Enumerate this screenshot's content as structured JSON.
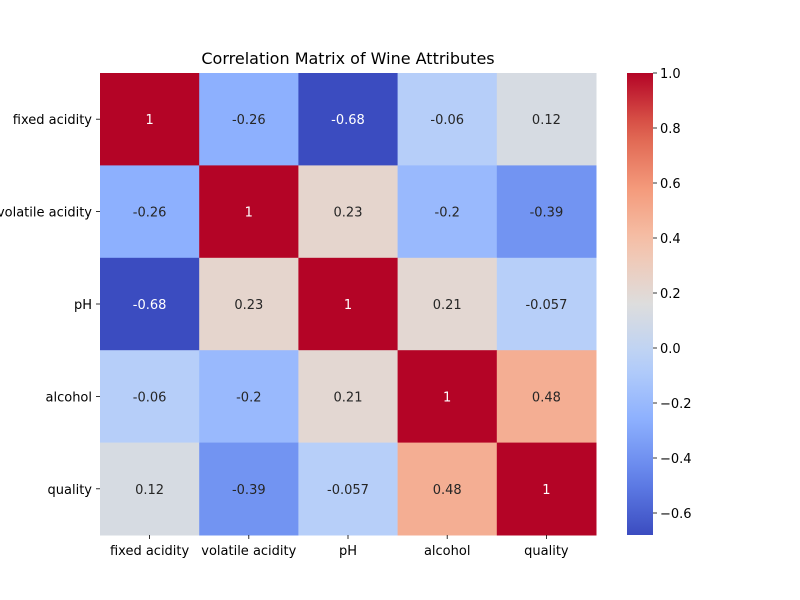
{
  "chart_data": {
    "type": "heatmap",
    "title": "Correlation Matrix of Wine Attributes",
    "row_labels": [
      "fixed acidity",
      "volatile acidity",
      "pH",
      "alcohol",
      "quality"
    ],
    "col_labels": [
      "fixed acidity",
      "volatile acidity",
      "pH",
      "alcohol",
      "quality"
    ],
    "values": [
      [
        1,
        -0.26,
        -0.68,
        -0.06,
        0.12
      ],
      [
        -0.26,
        1,
        0.23,
        -0.2,
        -0.39
      ],
      [
        -0.68,
        0.23,
        1,
        0.21,
        -0.057
      ],
      [
        -0.06,
        -0.2,
        0.21,
        1,
        0.48
      ],
      [
        0.12,
        -0.39,
        -0.057,
        0.48,
        1
      ]
    ],
    "annotations": [
      [
        "1",
        "-0.26",
        "-0.68",
        "-0.06",
        "0.12"
      ],
      [
        "-0.26",
        "1",
        "0.23",
        "-0.2",
        "-0.39"
      ],
      [
        "-0.68",
        "0.23",
        "1",
        "0.21",
        "-0.057"
      ],
      [
        "-0.06",
        "-0.2",
        "0.21",
        "1",
        "0.48"
      ],
      [
        "0.12",
        "-0.39",
        "-0.057",
        "0.48",
        "1"
      ]
    ],
    "colormap": "coolwarm",
    "vmin": -0.68,
    "vmax": 1.0,
    "colorbar_ticks": [
      1.0,
      0.8,
      0.6,
      0.4,
      0.2,
      0.0,
      -0.2,
      -0.4,
      -0.6
    ],
    "colorbar_tick_labels": [
      "1.0",
      "0.8",
      "0.6",
      "0.4",
      "0.2",
      "0.0",
      "−0.2",
      "−0.4",
      "−0.6"
    ]
  }
}
